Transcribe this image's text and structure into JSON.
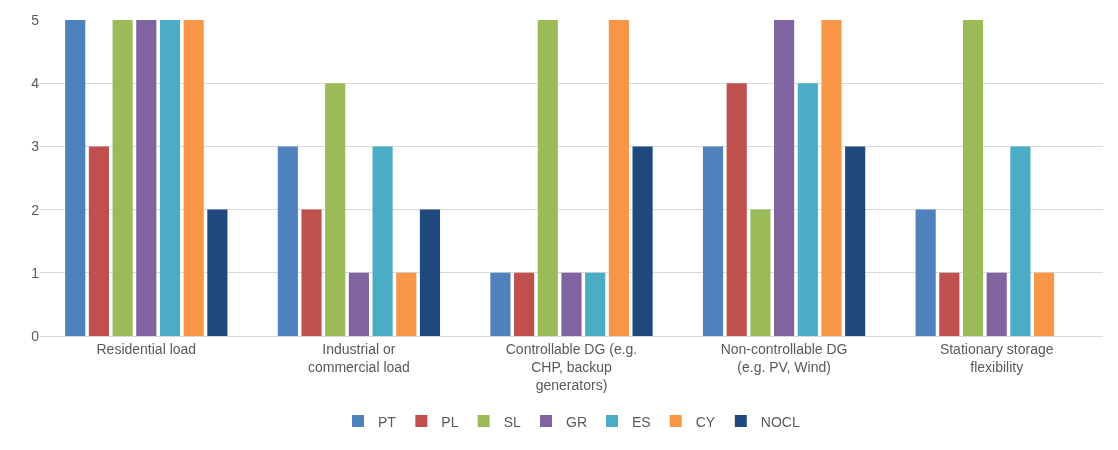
{
  "chart_data": {
    "type": "bar",
    "categories": [
      "Residential load",
      "Industrial or\ncommercial load",
      "Controllable DG (e.g.\nCHP, backup\ngenerators)",
      "Non-controllable DG\n(e.g. PV, Wind)",
      "Stationary storage\nflexibility"
    ],
    "series": [
      {
        "name": "PT",
        "color": "#4f81bd",
        "values": [
          5,
          3,
          1,
          3,
          2
        ]
      },
      {
        "name": "PL",
        "color": "#c0504d",
        "values": [
          3,
          2,
          1,
          4,
          1
        ]
      },
      {
        "name": "SL",
        "color": "#9bbb59",
        "values": [
          5,
          4,
          5,
          2,
          5
        ]
      },
      {
        "name": "GR",
        "color": "#8064a2",
        "values": [
          5,
          1,
          1,
          5,
          1
        ]
      },
      {
        "name": "ES",
        "color": "#4bacc6",
        "values": [
          5,
          3,
          1,
          4,
          3
        ]
      },
      {
        "name": "CY",
        "color": "#f79646",
        "values": [
          5,
          1,
          5,
          5,
          1
        ]
      },
      {
        "name": "NOCL",
        "color": "#1f497d",
        "values": [
          2,
          2,
          3,
          3,
          null
        ]
      }
    ],
    "ylim": [
      0,
      5
    ],
    "yticks": [
      0,
      1,
      2,
      3,
      4,
      5
    ],
    "grid": "y",
    "legend": "bottom"
  }
}
